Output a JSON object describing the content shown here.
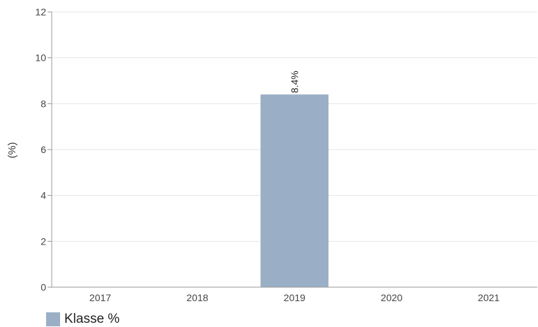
{
  "chart_data": {
    "type": "bar",
    "categories": [
      "2017",
      "2018",
      "2019",
      "2020",
      "2021"
    ],
    "series": [
      {
        "name": "Klasse %",
        "values": [
          null,
          null,
          8.4,
          null,
          null
        ],
        "labels": [
          "",
          "",
          "8.4%",
          "",
          ""
        ],
        "color": "#9aafc5"
      }
    ],
    "ylabel": "(%)",
    "ylim": [
      0,
      12
    ],
    "yticks": [
      "0",
      "2",
      "4",
      "6",
      "8",
      "10",
      "12"
    ],
    "grid": true,
    "legend": "bottom-left"
  }
}
